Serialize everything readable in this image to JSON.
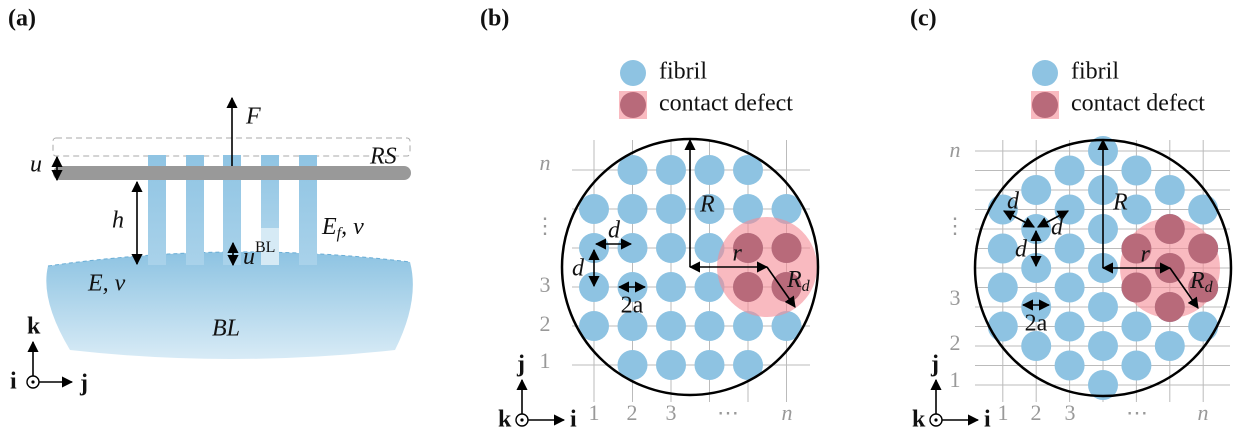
{
  "panel_a": {
    "label": "(a)",
    "force": "F",
    "rigid_surface": "RS",
    "displacement": "u",
    "height": "h",
    "fibril_modulus": {
      "symbol": "E",
      "sub": "f",
      "rest": ", ν"
    },
    "bl_displacement": {
      "symbol": "u",
      "sup": "BL"
    },
    "bl_modulus": "E, ν",
    "basal_layer": "BL",
    "axes": {
      "up": "k",
      "out": "i",
      "right": "j"
    }
  },
  "panel_b": {
    "label": "(b)",
    "legend": [
      "fibril",
      "contact defect"
    ],
    "row_labels": [
      "n",
      "⋮",
      "3",
      "2",
      "1"
    ],
    "col_labels": [
      "1",
      "2",
      "3",
      "⋯",
      "n"
    ],
    "radius": "R",
    "defect_distance": "r",
    "defect_radius": {
      "symbol": "R",
      "sub": "d"
    },
    "spacing": [
      "d",
      "d"
    ],
    "diameter": "2a",
    "axes": {
      "up": "j",
      "out": "k",
      "right": "i"
    }
  },
  "panel_c": {
    "label": "(c)",
    "legend": [
      "fibril",
      "contact defect"
    ],
    "row_labels": [
      "n",
      "⋮",
      "3",
      "2",
      "1"
    ],
    "col_labels": [
      "1",
      "2",
      "3",
      "⋯",
      "n"
    ],
    "radius": "R",
    "defect_distance": "r",
    "defect_radius": {
      "symbol": "R",
      "sub": "d"
    },
    "spacing": [
      "d",
      "d",
      "d"
    ],
    "diameter": "2a",
    "axes": {
      "up": "j",
      "out": "k",
      "right": "i"
    }
  }
}
